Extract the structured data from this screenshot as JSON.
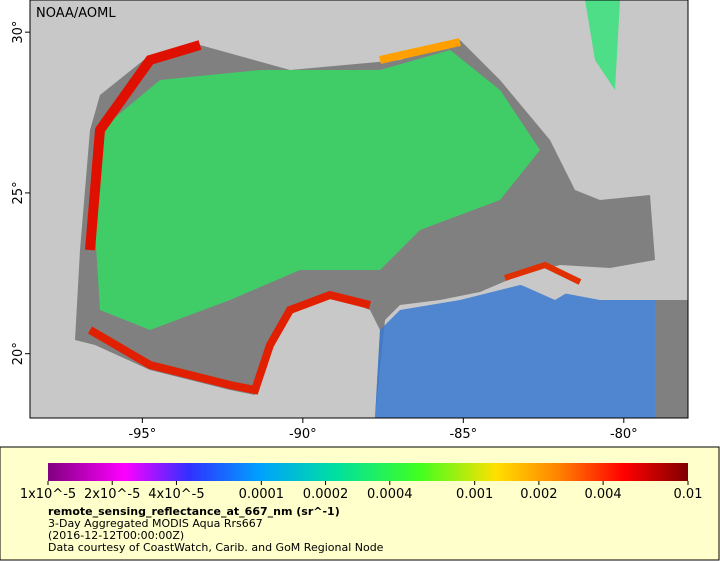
{
  "map": {
    "credit": "NOAA/AOML",
    "xlim": [
      -98.5,
      -78
    ],
    "ylim": [
      18,
      31
    ],
    "xticks": [
      {
        "value": -95,
        "label": "-95°"
      },
      {
        "value": -90,
        "label": "-90°"
      },
      {
        "value": -85,
        "label": "-85°"
      },
      {
        "value": -80,
        "label": "-80°"
      }
    ],
    "yticks": [
      {
        "value": 20,
        "label": "20°"
      },
      {
        "value": 25,
        "label": "25°"
      },
      {
        "value": 30,
        "label": "30°"
      }
    ]
  },
  "colorbar": {
    "scale": "log",
    "range": [
      1e-05,
      0.01
    ],
    "ticks": [
      {
        "value": 1e-05,
        "label": "1x10^-5"
      },
      {
        "value": 2e-05,
        "label": "2x10^-5"
      },
      {
        "value": 4e-05,
        "label": "4x10^-5"
      },
      0.0001,
      0.0002,
      0.0004,
      0.001,
      0.002,
      0.004,
      0.01
    ]
  },
  "legend": {
    "variable": "remote_sensing_reflectance_at_667_nm (sr^-1)",
    "dataset": "3-Day Aggregated MODIS Aqua Rrs667",
    "time": "(2016-12-12T00:00:00Z)",
    "source": "Data courtesy of CoastWatch, Carib. and GoM Regional Node"
  }
}
